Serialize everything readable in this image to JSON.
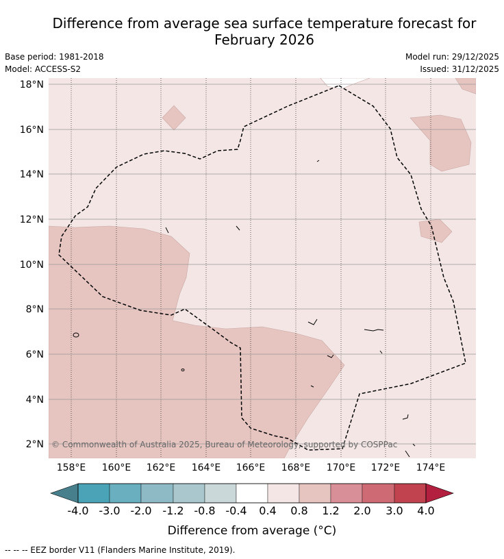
{
  "title_line1": "Difference from average sea surface temperature forecast for",
  "title_line2": "February 2026",
  "meta_left": [
    "Base period: 1981-2018",
    "Model: ACCESS-S2"
  ],
  "meta_right": [
    "Model run: 29/12/2025",
    "Issued: 31/12/2025"
  ],
  "map": {
    "lon_ticks": [
      "158°E",
      "160°E",
      "162°E",
      "164°E",
      "166°E",
      "168°E",
      "170°E",
      "172°E",
      "174°E"
    ],
    "lat_ticks": [
      "18°N",
      "16°N",
      "14°N",
      "12°N",
      "10°N",
      "8°N",
      "6°N",
      "4°N",
      "2°N"
    ],
    "copyright": "© Commonwealth of Australia 2025, Bureau of Meteorology, supported by COSPPac",
    "colors": {
      "band_0_4_0_8": "#f3e6e5",
      "band_0_8_1_2": "#e6c5c1",
      "neutral": "#ffffff"
    }
  },
  "colorbar": {
    "ticks": [
      "-4.0",
      "-3.0",
      "-2.0",
      "-1.2",
      "-0.8",
      "-0.4",
      "0.4",
      "0.8",
      "1.2",
      "2.0",
      "3.0",
      "4.0"
    ],
    "colors": [
      "#47808c",
      "#4aa3b6",
      "#6aafbf",
      "#8ebac5",
      "#a9c7cc",
      "#cbd8da",
      "#ffffff",
      "#f3e6e5",
      "#e6c5c1",
      "#d98f97",
      "#cd6a73",
      "#c0434f",
      "#b21f3f"
    ],
    "label": "Difference from average (°C)"
  },
  "footer": "-- -- -- EEZ border V11 (Flanders Marine Institute, 2019)."
}
